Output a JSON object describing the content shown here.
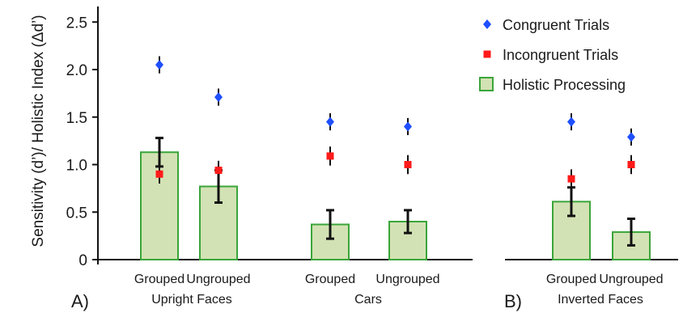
{
  "chart_data": {
    "type": "bar",
    "ylabel": "Sensitivity (d’)/ Holistic Index (Δd’)",
    "ylim": [
      0,
      2.5
    ],
    "yticks": [
      "0",
      "0.5",
      "1.0",
      "1.5",
      "2.0",
      "2.5"
    ],
    "ytick_values": [
      0,
      0.5,
      1.0,
      1.5,
      2.0,
      2.5
    ],
    "legend": {
      "placement": "top-right",
      "items": [
        {
          "label": "Congruent Trials",
          "marker": "diamond",
          "color": "#1f4fff"
        },
        {
          "label": "Incongruent Trials",
          "marker": "square",
          "color": "#ff1a1a"
        },
        {
          "label": "Holistic Processing",
          "marker": "bar",
          "color": "#d3e2b4",
          "edge": "#3aa53a"
        }
      ]
    },
    "panels": [
      {
        "label": "A)",
        "groups": [
          {
            "name": "Upright Faces",
            "conditions": [
              {
                "category": "Grouped",
                "holistic": 1.13,
                "holistic_err": 0.15,
                "congruent": 2.05,
                "congruent_err": 0.09,
                "incongruent": 0.9,
                "incongruent_err": 0.1
              },
              {
                "category": "Ungrouped",
                "holistic": 0.77,
                "holistic_err": 0.17,
                "congruent": 1.71,
                "congruent_err": 0.09,
                "incongruent": 0.94,
                "incongruent_err": 0.1
              }
            ]
          },
          {
            "name": "Cars",
            "conditions": [
              {
                "category": "Grouped",
                "holistic": 0.37,
                "holistic_err": 0.15,
                "congruent": 1.45,
                "congruent_err": 0.09,
                "incongruent": 1.09,
                "incongruent_err": 0.1
              },
              {
                "category": "Ungrouped",
                "holistic": 0.4,
                "holistic_err": 0.12,
                "congruent": 1.4,
                "congruent_err": 0.09,
                "incongruent": 1.0,
                "incongruent_err": 0.1
              }
            ]
          }
        ]
      },
      {
        "label": "B)",
        "groups": [
          {
            "name": "Inverted Faces",
            "conditions": [
              {
                "category": "Grouped",
                "holistic": 0.61,
                "holistic_err": 0.15,
                "congruent": 1.45,
                "congruent_err": 0.09,
                "incongruent": 0.85,
                "incongruent_err": 0.1
              },
              {
                "category": "Ungrouped",
                "holistic": 0.29,
                "holistic_err": 0.14,
                "congruent": 1.29,
                "congruent_err": 0.09,
                "incongruent": 1.0,
                "incongruent_err": 0.1
              }
            ]
          }
        ]
      }
    ]
  }
}
